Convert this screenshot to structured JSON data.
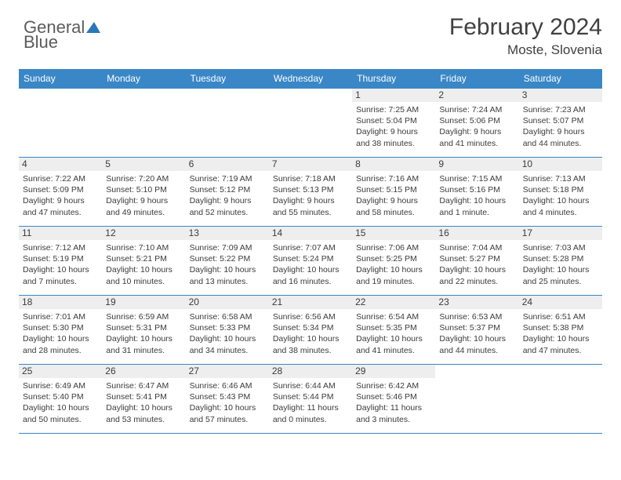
{
  "brand": {
    "part1": "General",
    "part2": "Blue"
  },
  "title": "February 2024",
  "location": "Moste, Slovenia",
  "colors": {
    "header_bg": "#3a87c7",
    "header_text": "#ffffff",
    "border": "#3a87c7",
    "daynum_bg": "#eeeeee",
    "text": "#3b3b3b",
    "brand_gray": "#5c5c5c",
    "brand_blue": "#2a78b9"
  },
  "weekdays": [
    "Sunday",
    "Monday",
    "Tuesday",
    "Wednesday",
    "Thursday",
    "Friday",
    "Saturday"
  ],
  "weeks": [
    [
      null,
      null,
      null,
      null,
      {
        "n": "1",
        "sunrise": "7:25 AM",
        "sunset": "5:04 PM",
        "daylight": "9 hours and 38 minutes."
      },
      {
        "n": "2",
        "sunrise": "7:24 AM",
        "sunset": "5:06 PM",
        "daylight": "9 hours and 41 minutes."
      },
      {
        "n": "3",
        "sunrise": "7:23 AM",
        "sunset": "5:07 PM",
        "daylight": "9 hours and 44 minutes."
      }
    ],
    [
      {
        "n": "4",
        "sunrise": "7:22 AM",
        "sunset": "5:09 PM",
        "daylight": "9 hours and 47 minutes."
      },
      {
        "n": "5",
        "sunrise": "7:20 AM",
        "sunset": "5:10 PM",
        "daylight": "9 hours and 49 minutes."
      },
      {
        "n": "6",
        "sunrise": "7:19 AM",
        "sunset": "5:12 PM",
        "daylight": "9 hours and 52 minutes."
      },
      {
        "n": "7",
        "sunrise": "7:18 AM",
        "sunset": "5:13 PM",
        "daylight": "9 hours and 55 minutes."
      },
      {
        "n": "8",
        "sunrise": "7:16 AM",
        "sunset": "5:15 PM",
        "daylight": "9 hours and 58 minutes."
      },
      {
        "n": "9",
        "sunrise": "7:15 AM",
        "sunset": "5:16 PM",
        "daylight": "10 hours and 1 minute."
      },
      {
        "n": "10",
        "sunrise": "7:13 AM",
        "sunset": "5:18 PM",
        "daylight": "10 hours and 4 minutes."
      }
    ],
    [
      {
        "n": "11",
        "sunrise": "7:12 AM",
        "sunset": "5:19 PM",
        "daylight": "10 hours and 7 minutes."
      },
      {
        "n": "12",
        "sunrise": "7:10 AM",
        "sunset": "5:21 PM",
        "daylight": "10 hours and 10 minutes."
      },
      {
        "n": "13",
        "sunrise": "7:09 AM",
        "sunset": "5:22 PM",
        "daylight": "10 hours and 13 minutes."
      },
      {
        "n": "14",
        "sunrise": "7:07 AM",
        "sunset": "5:24 PM",
        "daylight": "10 hours and 16 minutes."
      },
      {
        "n": "15",
        "sunrise": "7:06 AM",
        "sunset": "5:25 PM",
        "daylight": "10 hours and 19 minutes."
      },
      {
        "n": "16",
        "sunrise": "7:04 AM",
        "sunset": "5:27 PM",
        "daylight": "10 hours and 22 minutes."
      },
      {
        "n": "17",
        "sunrise": "7:03 AM",
        "sunset": "5:28 PM",
        "daylight": "10 hours and 25 minutes."
      }
    ],
    [
      {
        "n": "18",
        "sunrise": "7:01 AM",
        "sunset": "5:30 PM",
        "daylight": "10 hours and 28 minutes."
      },
      {
        "n": "19",
        "sunrise": "6:59 AM",
        "sunset": "5:31 PM",
        "daylight": "10 hours and 31 minutes."
      },
      {
        "n": "20",
        "sunrise": "6:58 AM",
        "sunset": "5:33 PM",
        "daylight": "10 hours and 34 minutes."
      },
      {
        "n": "21",
        "sunrise": "6:56 AM",
        "sunset": "5:34 PM",
        "daylight": "10 hours and 38 minutes."
      },
      {
        "n": "22",
        "sunrise": "6:54 AM",
        "sunset": "5:35 PM",
        "daylight": "10 hours and 41 minutes."
      },
      {
        "n": "23",
        "sunrise": "6:53 AM",
        "sunset": "5:37 PM",
        "daylight": "10 hours and 44 minutes."
      },
      {
        "n": "24",
        "sunrise": "6:51 AM",
        "sunset": "5:38 PM",
        "daylight": "10 hours and 47 minutes."
      }
    ],
    [
      {
        "n": "25",
        "sunrise": "6:49 AM",
        "sunset": "5:40 PM",
        "daylight": "10 hours and 50 minutes."
      },
      {
        "n": "26",
        "sunrise": "6:47 AM",
        "sunset": "5:41 PM",
        "daylight": "10 hours and 53 minutes."
      },
      {
        "n": "27",
        "sunrise": "6:46 AM",
        "sunset": "5:43 PM",
        "daylight": "10 hours and 57 minutes."
      },
      {
        "n": "28",
        "sunrise": "6:44 AM",
        "sunset": "5:44 PM",
        "daylight": "11 hours and 0 minutes."
      },
      {
        "n": "29",
        "sunrise": "6:42 AM",
        "sunset": "5:46 PM",
        "daylight": "11 hours and 3 minutes."
      },
      null,
      null
    ]
  ],
  "labels": {
    "sunrise": "Sunrise: ",
    "sunset": "Sunset: ",
    "daylight": "Daylight: "
  }
}
